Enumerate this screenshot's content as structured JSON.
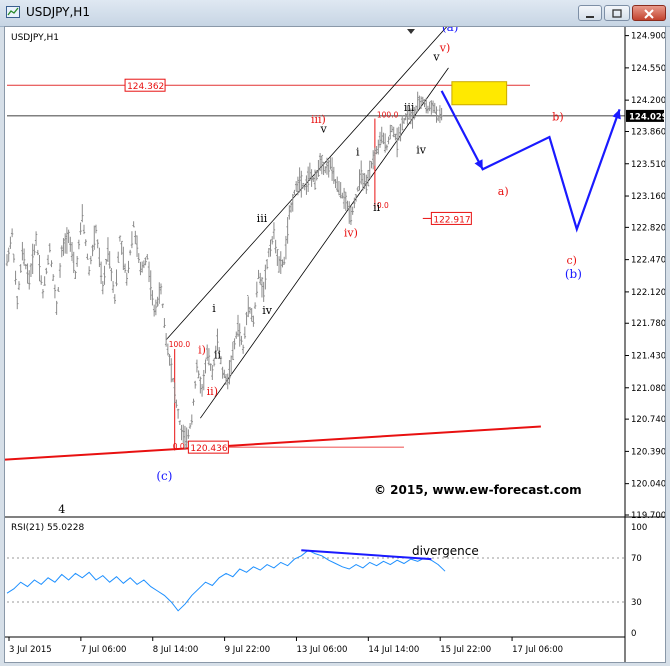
{
  "window": {
    "title": "USDJPY,H1"
  },
  "chart_data": {
    "type": "ohlc",
    "symbol_label": "USDJPY,H1",
    "price_axis": {
      "ticks": [
        "124.900",
        "124.550",
        "124.200",
        "123.860",
        "123.510",
        "123.160",
        "122.820",
        "122.470",
        "122.120",
        "121.780",
        "121.430",
        "121.080",
        "120.740",
        "120.390",
        "120.040",
        "119.700"
      ],
      "range": [
        119.7,
        124.95
      ]
    },
    "time_axis": {
      "ticks": [
        "3 Jul 2015",
        "7 Jul 06:00",
        "8 Jul 14:00",
        "9 Jul 22:00",
        "13 Jul 06:00",
        "14 Jul 14:00",
        "15 Jul 22:00",
        "17 Jul 06:00"
      ]
    },
    "current_price": "124.029",
    "price_labels": {
      "high_line": "124.362",
      "fib_target": "122.917",
      "low": "120.436",
      "fib_100_a": "100.0",
      "fib_0_a": "0.0",
      "fib_100_b": "100.0",
      "fib_0_b": "0.0"
    },
    "price_path": [
      [
        0,
        122.45
      ],
      [
        3,
        122.75
      ],
      [
        6,
        122.0
      ],
      [
        9,
        122.55
      ],
      [
        13,
        122.25
      ],
      [
        17,
        122.7
      ],
      [
        21,
        122.1
      ],
      [
        25,
        122.6
      ],
      [
        29,
        121.95
      ],
      [
        32,
        122.55
      ],
      [
        36,
        122.75
      ],
      [
        40,
        122.3
      ],
      [
        44,
        122.95
      ],
      [
        48,
        122.35
      ],
      [
        52,
        122.8
      ],
      [
        56,
        122.15
      ],
      [
        59,
        122.6
      ],
      [
        63,
        122.05
      ],
      [
        66,
        122.7
      ],
      [
        70,
        122.25
      ],
      [
        74,
        122.85
      ],
      [
        78,
        122.35
      ],
      [
        82,
        122.5
      ],
      [
        86,
        121.9
      ],
      [
        90,
        122.15
      ],
      [
        93,
        121.6
      ],
      [
        96,
        121.3
      ],
      [
        99,
        120.9
      ],
      [
        102,
        120.6
      ],
      [
        105,
        120.5
      ],
      [
        108,
        120.75
      ],
      [
        111,
        121.3
      ],
      [
        114,
        121.05
      ],
      [
        117,
        121.45
      ],
      [
        120,
        121.25
      ],
      [
        123,
        121.6
      ],
      [
        126,
        121.25
      ],
      [
        129,
        121.15
      ],
      [
        132,
        121.45
      ],
      [
        135,
        121.75
      ],
      [
        138,
        121.5
      ],
      [
        141,
        122.0
      ],
      [
        144,
        121.8
      ],
      [
        147,
        122.3
      ],
      [
        150,
        122.15
      ],
      [
        153,
        122.55
      ],
      [
        156,
        122.75
      ],
      [
        159,
        122.4
      ],
      [
        162,
        122.45
      ],
      [
        165,
        122.95
      ],
      [
        168,
        123.2
      ],
      [
        171,
        123.35
      ],
      [
        174,
        123.25
      ],
      [
        177,
        123.4
      ],
      [
        180,
        123.3
      ],
      [
        183,
        123.55
      ],
      [
        186,
        123.45
      ],
      [
        189,
        123.5
      ],
      [
        192,
        123.3
      ],
      [
        195,
        123.2
      ],
      [
        198,
        123.1
      ],
      [
        201,
        122.95
      ],
      [
        204,
        123.15
      ],
      [
        207,
        123.4
      ],
      [
        210,
        123.25
      ],
      [
        213,
        123.5
      ],
      [
        216,
        123.65
      ],
      [
        219,
        123.8
      ],
      [
        222,
        123.7
      ],
      [
        225,
        123.9
      ],
      [
        228,
        123.75
      ],
      [
        231,
        123.95
      ],
      [
        234,
        124.05
      ],
      [
        237,
        124.0
      ],
      [
        240,
        124.15
      ],
      [
        243,
        124.2
      ],
      [
        246,
        124.1
      ],
      [
        249,
        124.15
      ],
      [
        252,
        124.0
      ],
      [
        254,
        124.05
      ]
    ],
    "wave_labels_black": [
      {
        "text": "4",
        "x": 32,
        "y": 119.72
      },
      {
        "text": "i",
        "x": 121,
        "y": 121.9
      },
      {
        "text": "ii",
        "x": 123,
        "y": 121.4
      },
      {
        "text": "iii",
        "x": 149,
        "y": 122.88
      },
      {
        "text": "iv",
        "x": 152,
        "y": 121.88
      },
      {
        "text": "v",
        "x": 185,
        "y": 123.85
      },
      {
        "text": "i",
        "x": 205,
        "y": 123.6
      },
      {
        "text": "ii",
        "x": 216,
        "y": 123.0
      },
      {
        "text": "iii",
        "x": 235,
        "y": 124.08
      },
      {
        "text": "iv",
        "x": 242,
        "y": 123.62
      },
      {
        "text": "v",
        "x": 251,
        "y": 124.63
      }
    ],
    "wave_labels_red": [
      {
        "text": "i)",
        "x": 114,
        "y": 121.45
      },
      {
        "text": "ii)",
        "x": 120,
        "y": 121.0
      },
      {
        "text": "iii)",
        "x": 182,
        "y": 123.95
      },
      {
        "text": "iv)",
        "x": 201,
        "y": 122.72
      },
      {
        "text": "v)",
        "x": 256,
        "y": 124.73
      },
      {
        "text": "a)",
        "x": 290,
        "y": 123.17
      },
      {
        "text": "b)",
        "x": 322,
        "y": 123.98
      },
      {
        "text": "c)",
        "x": 330,
        "y": 122.42
      }
    ],
    "wave_labels_blue": [
      {
        "text": "(c)",
        "x": 92,
        "y": 120.08
      },
      {
        "text": "(a)",
        "x": 259,
        "y": 124.95
      },
      {
        "text": "(b)",
        "x": 331,
        "y": 122.27
      }
    ],
    "projection": {
      "color": "#1a1aff",
      "points": [
        [
          254,
          124.3
        ],
        [
          278,
          123.45
        ],
        [
          317,
          123.8
        ],
        [
          333,
          122.8
        ],
        [
          358,
          124.1
        ]
      ]
    },
    "watermark": "© 2015, www.ew-forecast.com"
  },
  "rsi": {
    "label": "RSI(21) 55.0228",
    "levels": [
      "100",
      "70",
      "30",
      "0"
    ],
    "divergence_label": "divergence",
    "path": [
      [
        0,
        38
      ],
      [
        4,
        42
      ],
      [
        8,
        48
      ],
      [
        12,
        44
      ],
      [
        16,
        50
      ],
      [
        20,
        46
      ],
      [
        24,
        52
      ],
      [
        28,
        48
      ],
      [
        32,
        55
      ],
      [
        36,
        50
      ],
      [
        40,
        56
      ],
      [
        44,
        52
      ],
      [
        48,
        57
      ],
      [
        52,
        50
      ],
      [
        56,
        54
      ],
      [
        60,
        48
      ],
      [
        64,
        53
      ],
      [
        68,
        47
      ],
      [
        72,
        52
      ],
      [
        76,
        46
      ],
      [
        80,
        50
      ],
      [
        84,
        44
      ],
      [
        88,
        40
      ],
      [
        92,
        36
      ],
      [
        96,
        30
      ],
      [
        100,
        22
      ],
      [
        104,
        28
      ],
      [
        108,
        36
      ],
      [
        112,
        42
      ],
      [
        116,
        48
      ],
      [
        120,
        45
      ],
      [
        124,
        52
      ],
      [
        128,
        56
      ],
      [
        132,
        53
      ],
      [
        136,
        60
      ],
      [
        140,
        57
      ],
      [
        144,
        62
      ],
      [
        148,
        59
      ],
      [
        152,
        64
      ],
      [
        156,
        61
      ],
      [
        160,
        66
      ],
      [
        164,
        63
      ],
      [
        168,
        69
      ],
      [
        172,
        72
      ],
      [
        176,
        77
      ],
      [
        180,
        74
      ],
      [
        184,
        72
      ],
      [
        188,
        68
      ],
      [
        192,
        65
      ],
      [
        196,
        62
      ],
      [
        200,
        60
      ],
      [
        204,
        64
      ],
      [
        208,
        61
      ],
      [
        212,
        66
      ],
      [
        216,
        63
      ],
      [
        220,
        67
      ],
      [
        224,
        64
      ],
      [
        228,
        68
      ],
      [
        232,
        65
      ],
      [
        236,
        69
      ],
      [
        240,
        67
      ],
      [
        244,
        70
      ],
      [
        248,
        68
      ],
      [
        252,
        64
      ],
      [
        256,
        58
      ]
    ]
  }
}
